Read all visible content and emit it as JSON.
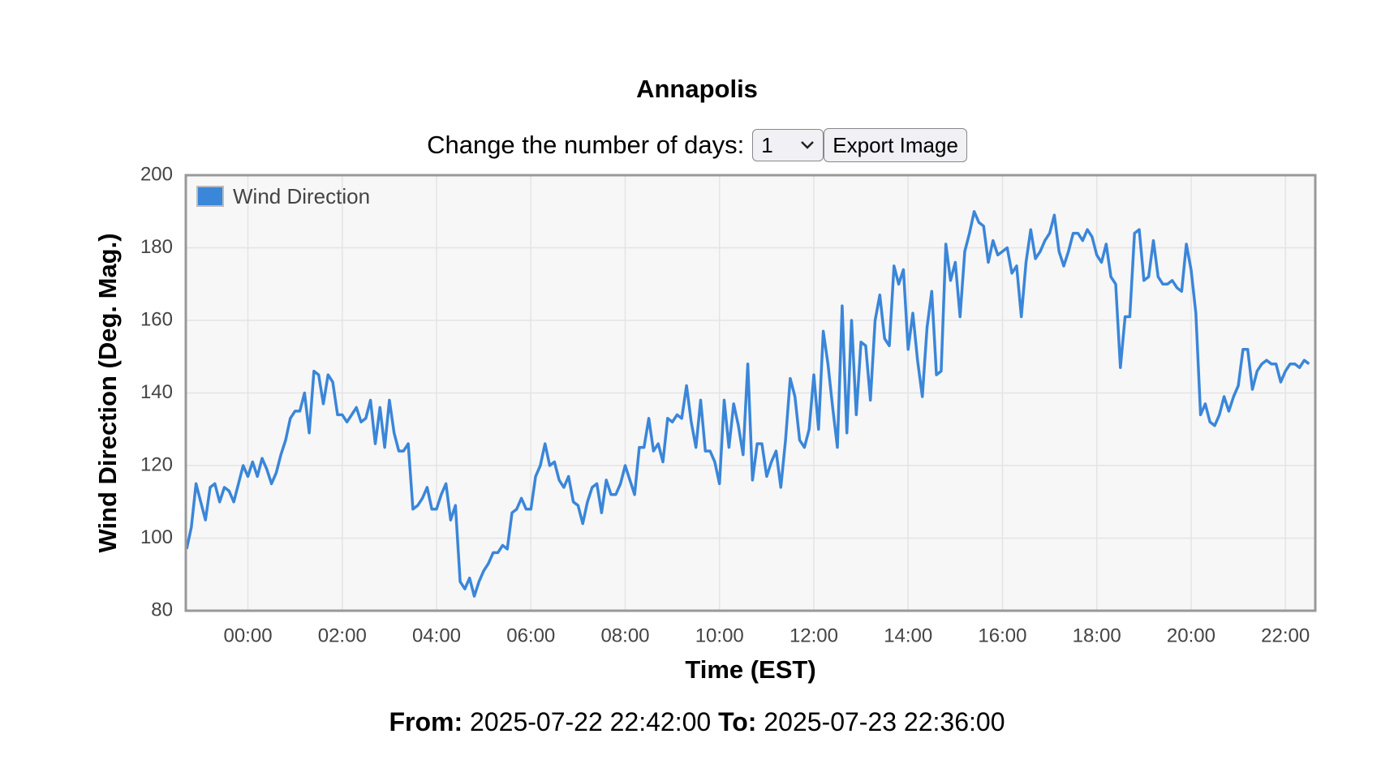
{
  "header": {
    "title": "Annapolis"
  },
  "controls": {
    "label": "Change the number of days:",
    "days": "1",
    "button": "Export Image"
  },
  "chart_data": {
    "type": "line",
    "xlabel": "Time (EST)",
    "ylabel": "Wind Direction (Deg. Mag.)",
    "x": [
      "22:42",
      "22:48",
      "22:54",
      "23:00",
      "23:06",
      "23:12",
      "23:18",
      "23:24",
      "23:30",
      "23:36",
      "23:42",
      "23:48",
      "23:54",
      "00:00",
      "00:06",
      "00:12",
      "00:18",
      "00:24",
      "00:30",
      "00:36",
      "00:42",
      "00:48",
      "00:54",
      "01:00",
      "01:06",
      "01:12",
      "01:18",
      "01:24",
      "01:30",
      "01:36",
      "01:42",
      "01:48",
      "01:54",
      "02:00",
      "02:06",
      "02:12",
      "02:18",
      "02:24",
      "02:30",
      "02:36",
      "02:42",
      "02:48",
      "02:54",
      "03:00",
      "03:06",
      "03:12",
      "03:18",
      "03:24",
      "03:30",
      "03:36",
      "03:42",
      "03:48",
      "03:54",
      "04:00",
      "04:06",
      "04:12",
      "04:18",
      "04:24",
      "04:30",
      "04:36",
      "04:42",
      "04:48",
      "04:54",
      "05:00",
      "05:06",
      "05:12",
      "05:18",
      "05:24",
      "05:30",
      "05:36",
      "05:42",
      "05:48",
      "05:54",
      "06:00",
      "06:06",
      "06:12",
      "06:18",
      "06:24",
      "06:30",
      "06:36",
      "06:42",
      "06:48",
      "06:54",
      "07:00",
      "07:06",
      "07:12",
      "07:18",
      "07:24",
      "07:30",
      "07:36",
      "07:42",
      "07:48",
      "07:54",
      "08:00",
      "08:06",
      "08:12",
      "08:18",
      "08:24",
      "08:30",
      "08:36",
      "08:42",
      "08:48",
      "08:54",
      "09:00",
      "09:06",
      "09:12",
      "09:18",
      "09:24",
      "09:30",
      "09:36",
      "09:42",
      "09:48",
      "09:54",
      "10:00",
      "10:06",
      "10:12",
      "10:18",
      "10:24",
      "10:30",
      "10:36",
      "10:42",
      "10:48",
      "10:54",
      "11:00",
      "11:06",
      "11:12",
      "11:18",
      "11:24",
      "11:30",
      "11:36",
      "11:42",
      "11:48",
      "11:54",
      "12:00",
      "12:06",
      "12:12",
      "12:18",
      "12:24",
      "12:30",
      "12:36",
      "12:42",
      "12:48",
      "12:54",
      "13:00",
      "13:06",
      "13:12",
      "13:18",
      "13:24",
      "13:30",
      "13:36",
      "13:42",
      "13:48",
      "13:54",
      "14:00",
      "14:06",
      "14:12",
      "14:18",
      "14:24",
      "14:30",
      "14:36",
      "14:42",
      "14:48",
      "14:54",
      "15:00",
      "15:06",
      "15:12",
      "15:18",
      "15:24",
      "15:30",
      "15:36",
      "15:42",
      "15:48",
      "15:54",
      "16:00",
      "16:06",
      "16:12",
      "16:18",
      "16:24",
      "16:30",
      "16:36",
      "16:42",
      "16:48",
      "16:54",
      "17:00",
      "17:06",
      "17:12",
      "17:18",
      "17:24",
      "17:30",
      "17:36",
      "17:42",
      "17:48",
      "17:54",
      "18:00",
      "18:06",
      "18:12",
      "18:18",
      "18:24",
      "18:30",
      "18:36",
      "18:42",
      "18:48",
      "18:54",
      "19:00",
      "19:06",
      "19:12",
      "19:18",
      "19:24",
      "19:30",
      "19:36",
      "19:42",
      "19:48",
      "19:54",
      "20:00",
      "20:06",
      "20:12",
      "20:18",
      "20:24",
      "20:30",
      "20:36",
      "20:42",
      "20:48",
      "20:54",
      "21:00",
      "21:06",
      "21:12",
      "21:18",
      "21:24",
      "21:30",
      "21:36",
      "21:42",
      "21:48",
      "21:54",
      "22:00",
      "22:06",
      "22:12",
      "22:18",
      "22:24",
      "22:30"
    ],
    "series": [
      {
        "name": "Wind Direction",
        "color": "#3a86d9",
        "values": [
          97,
          103,
          115,
          110,
          105,
          114,
          115,
          110,
          114,
          113,
          110,
          115,
          120,
          117,
          121,
          117,
          122,
          119,
          115,
          118,
          123,
          127,
          133,
          135,
          135,
          140,
          129,
          146,
          145,
          137,
          145,
          143,
          134,
          134,
          132,
          134,
          136,
          132,
          133,
          138,
          126,
          136,
          125,
          138,
          129,
          124,
          124,
          126,
          108,
          109,
          111,
          114,
          108,
          108,
          112,
          115,
          105,
          109,
          88,
          86,
          89,
          84,
          88,
          91,
          93,
          96,
          96,
          98,
          97,
          107,
          108,
          111,
          108,
          108,
          117,
          120,
          126,
          120,
          121,
          116,
          114,
          117,
          110,
          109,
          104,
          110,
          114,
          115,
          107,
          116,
          112,
          112,
          115,
          120,
          116,
          112,
          125,
          125,
          133,
          124,
          126,
          121,
          133,
          132,
          134,
          133,
          142,
          132,
          125,
          138,
          124,
          124,
          121,
          115,
          138,
          125,
          137,
          131,
          123,
          148,
          116,
          126,
          126,
          117,
          121,
          124,
          114,
          127,
          144,
          139,
          127,
          125,
          130,
          145,
          130,
          157,
          148,
          136,
          125,
          164,
          129,
          160,
          134,
          154,
          153,
          138,
          160,
          167,
          155,
          153,
          175,
          170,
          174,
          152,
          162,
          149,
          139,
          158,
          168,
          145,
          146,
          181,
          171,
          176,
          161,
          179,
          184,
          190,
          187,
          186,
          176,
          182,
          178,
          179,
          180,
          173,
          175,
          161,
          176,
          185,
          177,
          179,
          182,
          184,
          189,
          179,
          175,
          179,
          184,
          184,
          182,
          185,
          183,
          178,
          176,
          181,
          172,
          170,
          147,
          161,
          161,
          184,
          185,
          171,
          172,
          182,
          172,
          170,
          170,
          171,
          169,
          168,
          181,
          174,
          162,
          134,
          137,
          132,
          131,
          134,
          139,
          135,
          139,
          142,
          152,
          152,
          141,
          146,
          148,
          149,
          148,
          148,
          143,
          146,
          148,
          148,
          147,
          149,
          148
        ]
      }
    ],
    "xlim": [
      "22:41",
      "22:38"
    ],
    "xticks": [
      "00:00",
      "02:00",
      "04:00",
      "06:00",
      "08:00",
      "10:00",
      "12:00",
      "14:00",
      "16:00",
      "18:00",
      "20:00",
      "22:00"
    ],
    "ylim": [
      80,
      200
    ],
    "yticks": [
      80,
      100,
      120,
      140,
      160,
      180,
      200
    ],
    "grid": true,
    "legend": "upper left"
  },
  "footer": {
    "from_label": "From:",
    "from": "2025-07-22 22:42:00",
    "to_label": "To:",
    "to": "2025-07-23 22:36:00"
  }
}
